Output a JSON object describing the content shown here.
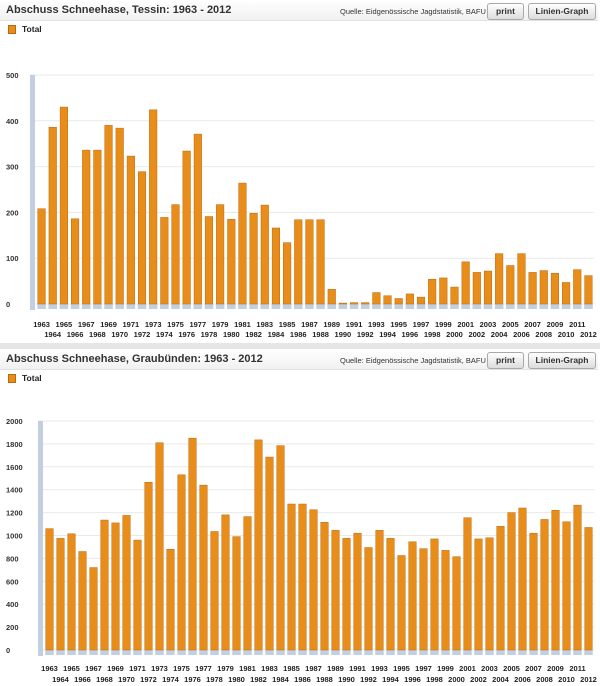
{
  "charts": [
    {
      "title": "Abschuss Schneehase, Tessin: 1963 - 2012",
      "source": "Quelle: Eidgenössische Jagdstatistik, BAFU",
      "print_label": "print",
      "graph_label": "Linien-Graph"
    },
    {
      "title": "Abschuss Schneehase, Graubünden: 1963 - 2012",
      "source": "Quelle: Eidgenössische Jagdstatistik, BAFU",
      "print_label": "print",
      "graph_label": "Linien-Graph"
    }
  ],
  "colors": {
    "bar": "#e98d1a",
    "bar_edge": "#b8690d",
    "base": "#c2cfe0",
    "grid": "#e9e9e9"
  },
  "chart_data": [
    {
      "type": "bar",
      "title": "Abschuss Schneehase, Tessin: 1963 - 2012",
      "xlabel": "",
      "ylabel": "",
      "ylim": [
        0,
        500
      ],
      "yticks": [
        0,
        100,
        200,
        300,
        400,
        500
      ],
      "grid": true,
      "legend": "top-left",
      "categories": [
        "1963",
        "1964",
        "1965",
        "1966",
        "1967",
        "1968",
        "1969",
        "1970",
        "1971",
        "1972",
        "1973",
        "1974",
        "1975",
        "1976",
        "1977",
        "1978",
        "1979",
        "1980",
        "1981",
        "1982",
        "1983",
        "1984",
        "1985",
        "1986",
        "1987",
        "1988",
        "1989",
        "1990",
        "1991",
        "1992",
        "1993",
        "1994",
        "1995",
        "1996",
        "1997",
        "1998",
        "1999",
        "2000",
        "2001",
        "2002",
        "2003",
        "2004",
        "2005",
        "2006",
        "2007",
        "2008",
        "2009",
        "2010",
        "2011",
        "2012"
      ],
      "series": [
        {
          "name": "Total",
          "values": [
            208,
            386,
            430,
            186,
            336,
            336,
            390,
            384,
            323,
            289,
            424,
            189,
            217,
            334,
            371,
            191,
            217,
            185,
            264,
            198,
            216,
            166,
            134,
            184,
            184,
            184,
            32,
            2,
            3,
            3,
            25,
            18,
            12,
            22,
            15,
            54,
            57,
            37,
            92,
            69,
            72,
            110,
            84,
            110,
            69,
            73,
            67,
            47,
            75,
            62
          ]
        }
      ]
    },
    {
      "type": "bar",
      "title": "Abschuss Schneehase, Graubünden: 1963 - 2012",
      "xlabel": "",
      "ylabel": "",
      "ylim": [
        0,
        2000
      ],
      "yticks": [
        0,
        200,
        400,
        600,
        800,
        1000,
        1200,
        1400,
        1600,
        1800,
        2000
      ],
      "grid": true,
      "legend": "top-left",
      "categories": [
        "1963",
        "1964",
        "1965",
        "1966",
        "1967",
        "1968",
        "1969",
        "1970",
        "1971",
        "1972",
        "1973",
        "1974",
        "1975",
        "1976",
        "1977",
        "1978",
        "1979",
        "1980",
        "1981",
        "1982",
        "1983",
        "1984",
        "1985",
        "1986",
        "1987",
        "1988",
        "1989",
        "1990",
        "1991",
        "1992",
        "1993",
        "1994",
        "1995",
        "1996",
        "1997",
        "1998",
        "1999",
        "2000",
        "2001",
        "2002",
        "2003",
        "2004",
        "2005",
        "2006",
        "2007",
        "2008",
        "2009",
        "2010",
        "2011",
        "2012"
      ],
      "series": [
        {
          "name": "Total",
          "values": [
            1060,
            975,
            1015,
            860,
            720,
            1135,
            1110,
            1175,
            960,
            1465,
            1810,
            880,
            1530,
            1850,
            1440,
            1035,
            1180,
            990,
            1165,
            1835,
            1685,
            1785,
            1275,
            1275,
            1225,
            1115,
            1045,
            975,
            1020,
            895,
            1045,
            975,
            825,
            945,
            885,
            970,
            870,
            815,
            1155,
            970,
            980,
            1080,
            1200,
            1240,
            1020,
            1140,
            1220,
            1120,
            1265,
            1070
          ]
        }
      ]
    }
  ]
}
